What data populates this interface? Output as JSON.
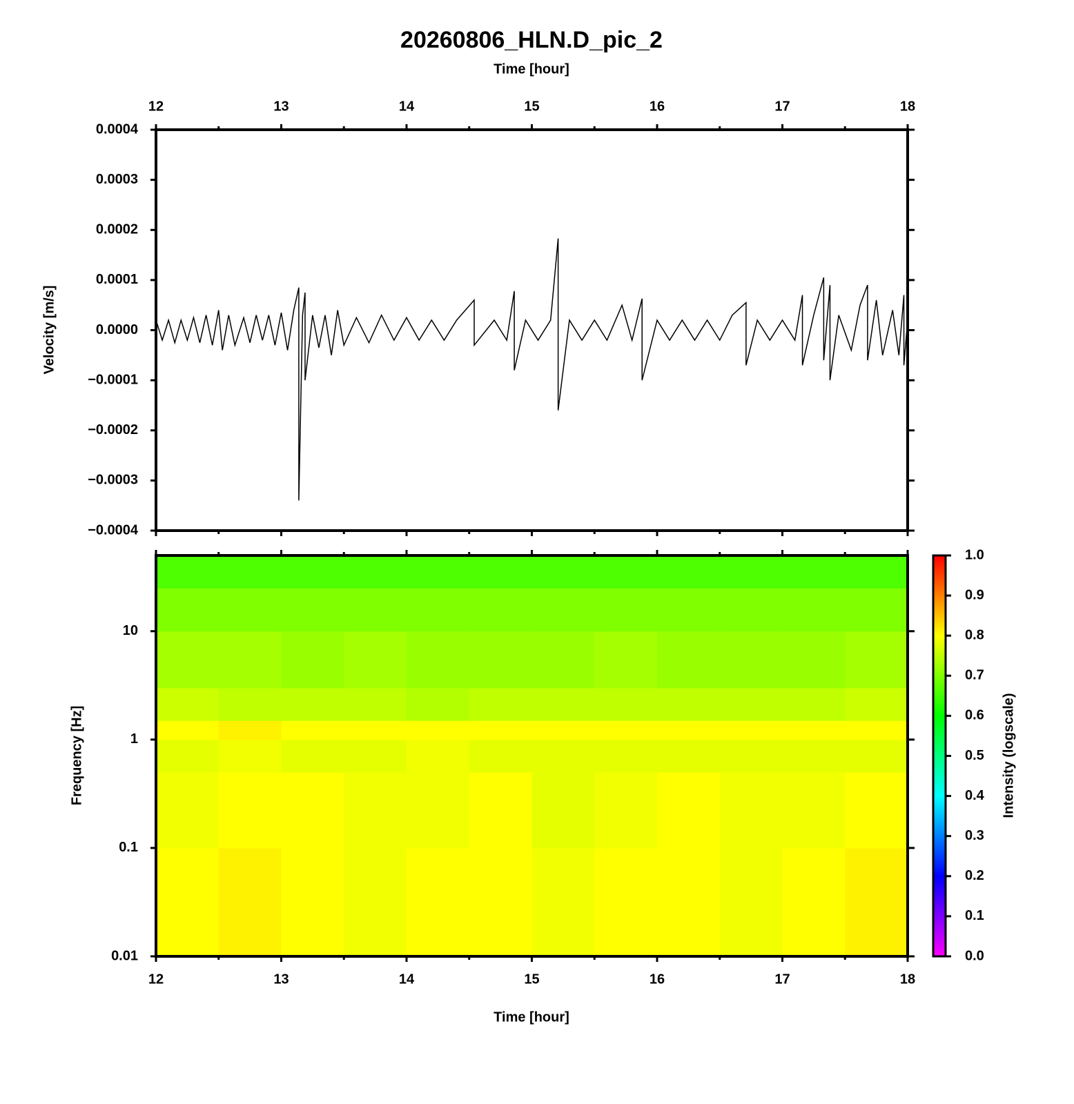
{
  "chart_data": [
    {
      "type": "line",
      "title": "20260806_HLN.D_pic_2",
      "xlabel": "Time [hour]",
      "ylabel": "Velocity [m/s]",
      "xlim": [
        12,
        18
      ],
      "xticks": [
        12,
        13,
        14,
        15,
        16,
        17,
        18
      ],
      "ylim": [
        -0.0004,
        0.0004
      ],
      "yticks": [
        {
          "value": -0.0004,
          "label": "−0.0004"
        },
        {
          "value": -0.0003,
          "label": "−0.0003"
        },
        {
          "value": -0.0002,
          "label": "−0.0002"
        },
        {
          "value": -0.0001,
          "label": "−0.0001"
        },
        {
          "value": 0,
          "label": "0.0000"
        },
        0.0001,
        0.0002,
        0.0003,
        0.0004
      ],
      "series": [
        {
          "color": "#000000",
          "x": [
            12,
            12.05,
            12.1,
            12.15,
            12.2,
            12.25,
            12.3,
            12.35,
            12.4,
            12.45,
            12.5,
            12.53,
            12.58,
            12.63,
            12.7,
            12.75,
            12.8,
            12.85,
            12.9,
            12.95,
            13,
            13.05,
            13.1,
            13.14,
            13.14,
            13.17,
            13.19,
            13.19,
            13.25,
            13.3,
            13.35,
            13.4,
            13.45,
            13.5,
            13.6,
            13.7,
            13.8,
            13.9,
            14,
            14.1,
            14.2,
            14.3,
            14.4,
            14.54,
            14.54,
            14.7,
            14.8,
            14.86,
            14.86,
            14.95,
            15.05,
            15.15,
            15.21,
            15.21,
            15.3,
            15.4,
            15.5,
            15.6,
            15.72,
            15.8,
            15.88,
            15.88,
            16,
            16.1,
            16.2,
            16.3,
            16.4,
            16.5,
            16.6,
            16.71,
            16.71,
            16.8,
            16.9,
            17,
            17.1,
            17.16,
            17.16,
            17.25,
            17.33,
            17.33,
            17.38,
            17.38,
            17.45,
            17.55,
            17.62,
            17.68,
            17.68,
            17.75,
            17.8,
            17.88,
            17.93,
            17.97,
            17.97,
            18
          ],
          "values": [
            2e-05,
            -2e-05,
            2e-05,
            -2.5e-05,
            2e-05,
            -2e-05,
            2.5e-05,
            -2.5e-05,
            3e-05,
            -3e-05,
            4e-05,
            -4e-05,
            3e-05,
            -3e-05,
            2.5e-05,
            -2.5e-05,
            3e-05,
            -2e-05,
            3e-05,
            -3e-05,
            3.5e-05,
            -4e-05,
            4e-05,
            8.5e-05,
            -0.00034,
            3e-05,
            7.5e-05,
            -0.0001,
            3e-05,
            -3.5e-05,
            3e-05,
            -5e-05,
            4e-05,
            -3e-05,
            2.5e-05,
            -2.5e-05,
            3e-05,
            -2e-05,
            2.5e-05,
            -2e-05,
            2e-05,
            -2e-05,
            2e-05,
            6e-05,
            -3e-05,
            2e-05,
            -2e-05,
            7.8e-05,
            -8e-05,
            2e-05,
            -2e-05,
            2e-05,
            0.000183,
            -0.00016,
            2e-05,
            -2e-05,
            2e-05,
            -2e-05,
            5e-05,
            -2e-05,
            6.3e-05,
            -0.0001,
            2e-05,
            -2e-05,
            2e-05,
            -2e-05,
            2e-05,
            -2e-05,
            3e-05,
            5.5e-05,
            -7e-05,
            2e-05,
            -2e-05,
            2e-05,
            -2e-05,
            7e-05,
            -7e-05,
            3e-05,
            0.000105,
            -6e-05,
            9e-05,
            -0.0001,
            3e-05,
            -4e-05,
            5e-05,
            9e-05,
            -6e-05,
            6e-05,
            -5e-05,
            4e-05,
            -5e-05,
            7e-05,
            -7e-05,
            2e-05
          ]
        }
      ]
    },
    {
      "type": "heatmap",
      "xlabel": "Time [hour]",
      "ylabel": "Frequency [Hz]",
      "xlim": [
        12,
        18
      ],
      "xticks": [
        12,
        13,
        14,
        15,
        16,
        17,
        18
      ],
      "ylim": [
        0.01,
        50
      ],
      "yscale": "log",
      "yticks": [
        0.01,
        0.1,
        1,
        10
      ],
      "x_edges": [
        12,
        12.5,
        13,
        13.5,
        14,
        14.5,
        15,
        15.5,
        16,
        16.5,
        17,
        17.5,
        18
      ],
      "y_edges": [
        0.01,
        0.1,
        0.5,
        1,
        1.5,
        3,
        10,
        25,
        50
      ],
      "values": [
        [
          0.8,
          0.81,
          0.8,
          0.79,
          0.8,
          0.8,
          0.79,
          0.8,
          0.8,
          0.79,
          0.8,
          0.81
        ],
        [
          0.79,
          0.8,
          0.8,
          0.79,
          0.79,
          0.8,
          0.78,
          0.79,
          0.8,
          0.79,
          0.79,
          0.8
        ],
        [
          0.78,
          0.79,
          0.78,
          0.78,
          0.79,
          0.78,
          0.78,
          0.78,
          0.78,
          0.78,
          0.78,
          0.78
        ],
        [
          0.8,
          0.81,
          0.8,
          0.8,
          0.8,
          0.8,
          0.8,
          0.8,
          0.8,
          0.8,
          0.8,
          0.8
        ],
        [
          0.76,
          0.75,
          0.75,
          0.75,
          0.74,
          0.75,
          0.75,
          0.75,
          0.75,
          0.75,
          0.75,
          0.76
        ],
        [
          0.73,
          0.73,
          0.72,
          0.73,
          0.72,
          0.72,
          0.72,
          0.73,
          0.72,
          0.72,
          0.72,
          0.73
        ],
        [
          0.7,
          0.7,
          0.7,
          0.7,
          0.7,
          0.7,
          0.7,
          0.7,
          0.7,
          0.7,
          0.7,
          0.7
        ],
        [
          0.66,
          0.66,
          0.66,
          0.66,
          0.66,
          0.66,
          0.66,
          0.66,
          0.66,
          0.66,
          0.66,
          0.66
        ]
      ],
      "colormap": [
        "#ff00ff",
        "#0000ff",
        "#00ffff",
        "#00ff00",
        "#ffff00",
        "#ff0000"
      ],
      "colorbar": {
        "label": "Intensity (logscale)",
        "lim": [
          0,
          1
        ],
        "ticks": [
          {
            "value": 0,
            "label": "0.0"
          },
          0.1,
          0.2,
          0.3,
          0.4,
          0.5,
          0.6,
          0.7,
          0.8,
          0.9,
          {
            "value": 1,
            "label": "1.0"
          }
        ]
      }
    }
  ]
}
